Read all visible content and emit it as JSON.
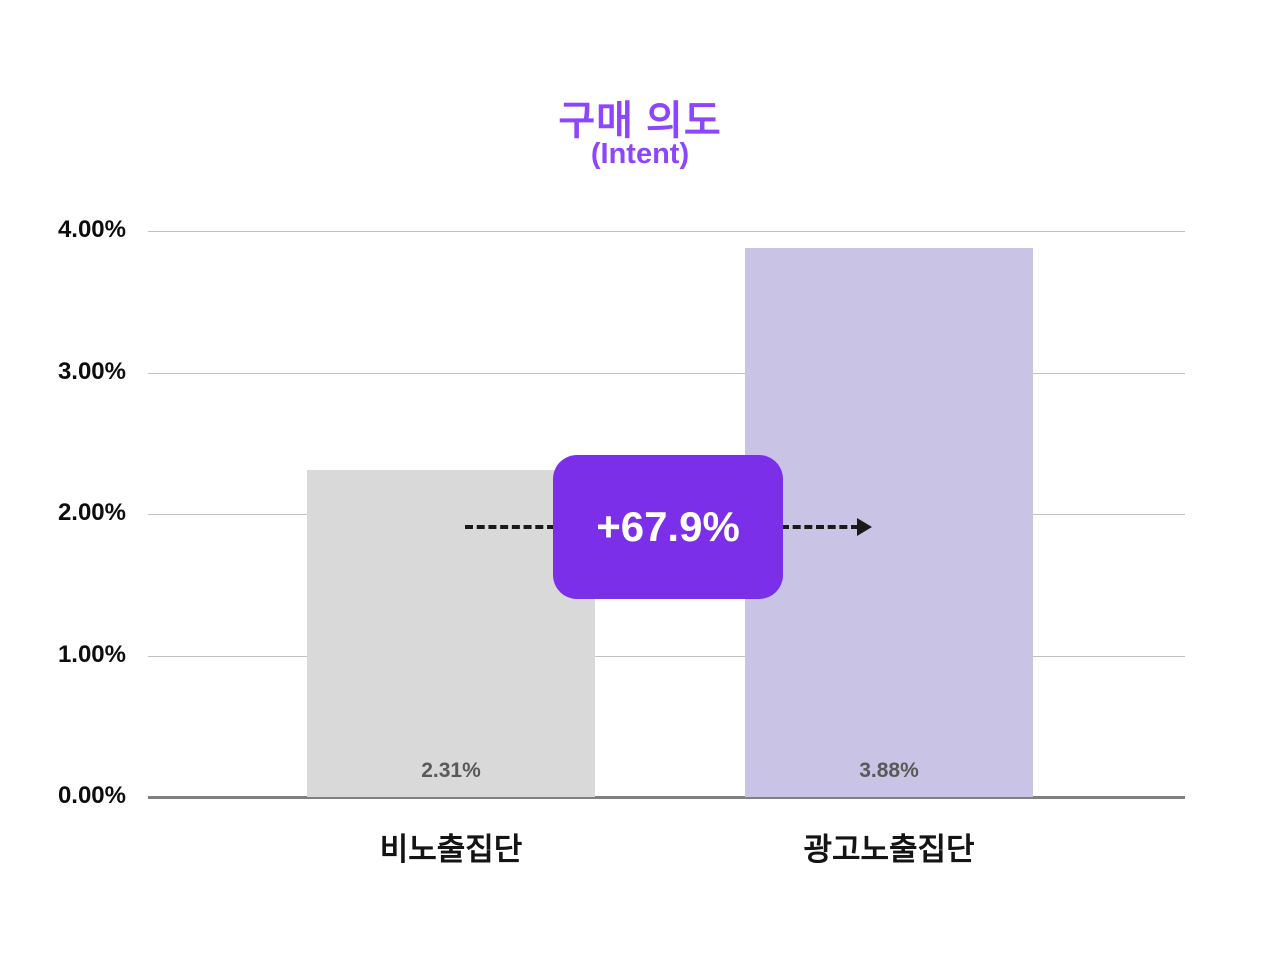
{
  "chart_data": {
    "type": "bar",
    "title": "구매 의도",
    "subtitle": "(Intent)",
    "categories": [
      "비노출집단",
      "광고노출집단"
    ],
    "values": [
      2.31,
      3.88
    ],
    "value_labels": [
      "2.31%",
      "3.88%"
    ],
    "ylim": [
      0,
      4
    ],
    "yticks": [
      "4.00%",
      "3.00%",
      "2.00%",
      "1.00%",
      "0.00%"
    ],
    "grid": true,
    "legend": "none",
    "annotation": {
      "label": "+67.9%",
      "style": "rounded-badge-with-dashed-arrow"
    },
    "colors": {
      "title": "#8C46FF",
      "subtitle": "#8C46FF",
      "control_bar": "#D9D9D9",
      "exposed_bar": "#C9C3E6",
      "badge_bg": "#7C2FE9",
      "grid_line": "#C2C2C2",
      "axis_line": "#7F7F7F",
      "value_label": "#595959"
    }
  }
}
